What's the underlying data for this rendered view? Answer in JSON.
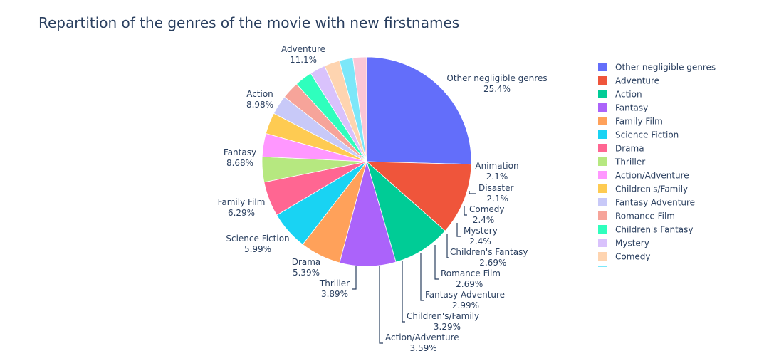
{
  "chart_data": {
    "type": "pie",
    "title": "Repartition of the genres of the movie with new firstnames",
    "slices": [
      {
        "label": "Other negligible genres",
        "value": 25.4,
        "text": "25.4%",
        "color": "#636efa"
      },
      {
        "label": "Adventure",
        "value": 11.1,
        "text": "11.1%",
        "color": "#EF553B"
      },
      {
        "label": "Action",
        "value": 8.98,
        "text": "8.98%",
        "color": "#00cc96"
      },
      {
        "label": "Fantasy",
        "value": 8.68,
        "text": "8.68%",
        "color": "#ab63fa"
      },
      {
        "label": "Family Film",
        "value": 6.29,
        "text": "6.29%",
        "color": "#FFA15A"
      },
      {
        "label": "Science Fiction",
        "value": 5.99,
        "text": "5.99%",
        "color": "#19d3f3"
      },
      {
        "label": "Drama",
        "value": 5.39,
        "text": "5.39%",
        "color": "#FF6692"
      },
      {
        "label": "Thriller",
        "value": 3.89,
        "text": "3.89%",
        "color": "#B6E880"
      },
      {
        "label": "Action/Adventure",
        "value": 3.59,
        "text": "3.59%",
        "color": "#FF97FF"
      },
      {
        "label": "Children's/Family",
        "value": 3.29,
        "text": "3.29%",
        "color": "#FECB52"
      },
      {
        "label": "Fantasy Adventure",
        "value": 2.99,
        "text": "2.99%",
        "color": "#c8c9f8"
      },
      {
        "label": "Romance Film",
        "value": 2.69,
        "text": "2.69%",
        "color": "#f6a49a"
      },
      {
        "label": "Children's Fantasy",
        "value": 2.69,
        "text": "2.69%",
        "color": "#2fffbd"
      },
      {
        "label": "Mystery",
        "value": 2.4,
        "text": "2.4%",
        "color": "#d9c2fc"
      },
      {
        "label": "Comedy",
        "value": 2.4,
        "text": "2.4%",
        "color": "#fed4b0"
      },
      {
        "label": "Disaster",
        "value": 2.1,
        "text": "2.1%",
        "color": "#7ce7f9"
      },
      {
        "label": "Animation",
        "value": 2.1,
        "text": "2.1%",
        "color": "#fbc6d6"
      }
    ],
    "legend_placement": "right",
    "legend_visible_count": 15,
    "direction": "clockwise",
    "start": "top"
  }
}
